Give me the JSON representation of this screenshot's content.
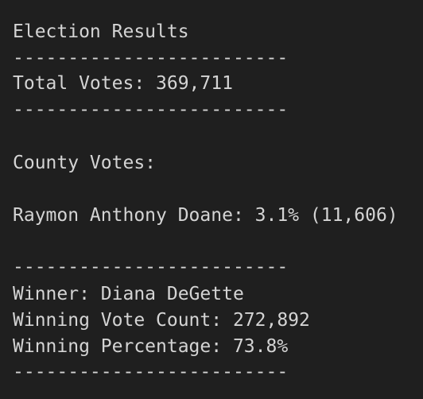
{
  "output": {
    "title": "Election Results",
    "separator": "-------------------------",
    "total_votes": "Total Votes: 369,711",
    "county_votes_header": "County Votes:",
    "county_line": "Raymon Anthony Doane: 3.1% (11,606)",
    "winner": "Winner: Diana DeGette",
    "winning_vote_count": "Winning Vote Count: 272,892",
    "winning_percentage": "Winning Percentage: 73.8%"
  },
  "colors": {
    "background": "#1f1f1f",
    "text": "#d4d4d4"
  }
}
